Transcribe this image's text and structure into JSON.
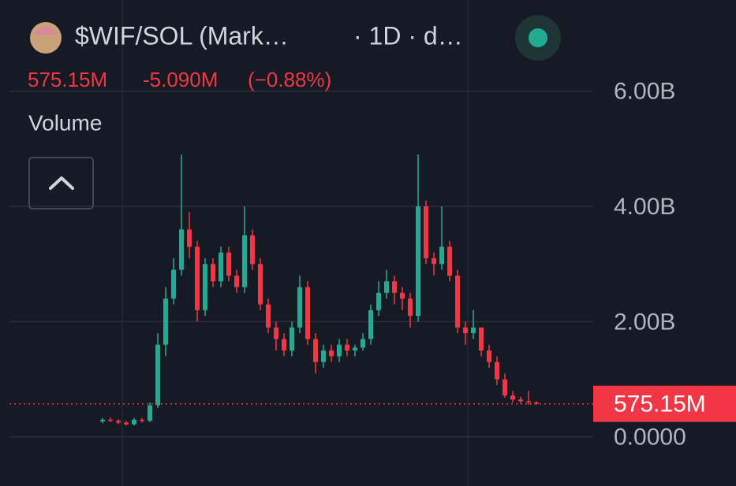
{
  "chart_data": {
    "type": "candlestick",
    "title": "$WIF/SOL (Mark…",
    "subtitle": "· 1D · d…",
    "last_value_text": "575.15M",
    "change_text": "-5.090M",
    "change_pct_text": "(−0.88%)",
    "pane_label": "Volume",
    "up_color": "#22ab94",
    "down_color": "#f23645",
    "ylim": [
      -0.85,
      7.58
    ],
    "yticks": [
      {
        "value": 0,
        "label": "0.0000"
      },
      {
        "value": 2,
        "label": "2.00B"
      },
      {
        "value": 4,
        "label": "4.00B"
      },
      {
        "value": 6,
        "label": "6.00B"
      }
    ],
    "grid": true,
    "last_price": {
      "value": 0.57515,
      "label": "575.15M"
    },
    "open": [
      0.27,
      0.3,
      0.28,
      0.25,
      0.22,
      0.3,
      0.28,
      0.55,
      1.6,
      2.4,
      2.9,
      3.6,
      3.3,
      2.2,
      3.0,
      2.7,
      3.2,
      2.8,
      2.6,
      3.5,
      3.0,
      2.3,
      1.9,
      1.7,
      1.5,
      1.9,
      2.6,
      1.7,
      1.3,
      1.5,
      1.4,
      1.6,
      1.5,
      1.55,
      1.7,
      2.2,
      2.5,
      2.7,
      2.5,
      2.4,
      2.1,
      4.0,
      3.1,
      3.0,
      3.3,
      2.8,
      1.9,
      1.8,
      1.9,
      1.5,
      1.3,
      1.0,
      0.72,
      0.65,
      0.62,
      0.6
    ],
    "high": [
      0.33,
      0.34,
      0.31,
      0.28,
      0.33,
      0.33,
      0.6,
      1.8,
      2.6,
      3.1,
      4.9,
      3.9,
      3.4,
      3.1,
      3.1,
      3.3,
      3.3,
      2.9,
      4.0,
      3.6,
      3.1,
      2.4,
      2.0,
      1.8,
      2.0,
      2.8,
      2.7,
      1.8,
      1.6,
      1.6,
      1.7,
      1.7,
      1.6,
      1.8,
      2.3,
      2.7,
      2.9,
      2.8,
      2.6,
      2.5,
      4.9,
      4.1,
      3.2,
      4.0,
      3.4,
      2.9,
      2.0,
      2.2,
      1.9,
      1.6,
      1.4,
      1.1,
      0.8,
      0.7,
      0.8,
      0.62
    ],
    "low": [
      0.24,
      0.26,
      0.22,
      0.2,
      0.2,
      0.25,
      0.26,
      0.5,
      1.4,
      2.3,
      2.8,
      3.1,
      2.0,
      2.1,
      2.6,
      2.6,
      2.7,
      2.5,
      2.5,
      2.9,
      2.2,
      1.8,
      1.5,
      1.4,
      1.4,
      1.8,
      1.6,
      1.1,
      1.2,
      1.3,
      1.3,
      1.4,
      1.4,
      1.5,
      1.6,
      2.1,
      2.4,
      2.3,
      2.2,
      1.9,
      2.0,
      3.0,
      2.8,
      2.9,
      2.7,
      1.8,
      1.6,
      1.7,
      1.4,
      1.2,
      0.9,
      0.68,
      0.6,
      0.58,
      0.56,
      0.56
    ],
    "close": [
      0.3,
      0.28,
      0.25,
      0.22,
      0.3,
      0.28,
      0.55,
      1.6,
      2.4,
      2.9,
      3.6,
      3.3,
      2.2,
      3.0,
      2.7,
      3.2,
      2.8,
      2.6,
      3.5,
      3.0,
      2.3,
      1.9,
      1.7,
      1.5,
      1.9,
      2.6,
      1.7,
      1.3,
      1.5,
      1.4,
      1.6,
      1.5,
      1.55,
      1.7,
      2.2,
      2.5,
      2.7,
      2.5,
      2.4,
      2.1,
      4.0,
      3.1,
      3.0,
      3.3,
      2.8,
      1.9,
      1.8,
      1.9,
      1.5,
      1.3,
      1.0,
      0.72,
      0.65,
      0.62,
      0.6,
      0.575
    ]
  }
}
